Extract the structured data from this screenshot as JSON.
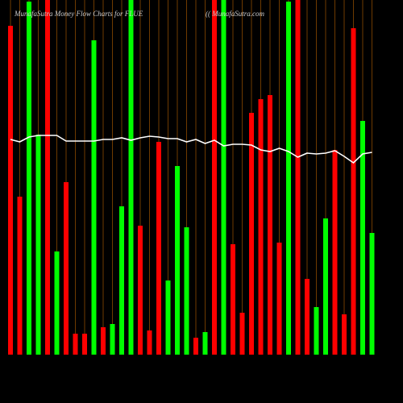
{
  "chart_data": {
    "type": "bar",
    "title": "MunafaSutra  Money Flow  Charts for FLUE",
    "subtitle": "(( MunafaSutra.com",
    "ylim": [
      0,
      440
    ],
    "values": [
      408,
      196,
      438,
      273,
      440,
      128,
      214,
      26,
      26,
      390,
      34,
      38,
      184,
      440,
      160,
      30,
      264,
      92,
      234,
      158,
      21,
      28,
      440,
      440,
      137,
      52,
      300,
      317,
      322,
      139,
      438,
      440,
      94,
      59,
      169,
      254,
      50,
      405,
      290,
      151
    ],
    "colors": [
      "#ff0000",
      "#ff0000",
      "#00ff00",
      "#00ff00",
      "#ff0000",
      "#00ff00",
      "#ff0000",
      "#ff0000",
      "#ff0000",
      "#00ff00",
      "#ff0000",
      "#00ff00",
      "#00ff00",
      "#00ff00",
      "#ff0000",
      "#ff0000",
      "#ff0000",
      "#00ff00",
      "#00ff00",
      "#00ff00",
      "#ff0000",
      "#00ff00",
      "#ff0000",
      "#00ff00",
      "#ff0000",
      "#ff0000",
      "#ff0000",
      "#ff0000",
      "#ff0000",
      "#ff0000",
      "#00ff00",
      "#ff0000",
      "#ff0000",
      "#00ff00",
      "#00ff00",
      "#ff0000",
      "#ff0000",
      "#ff0000",
      "#00ff00",
      "#00ff00"
    ],
    "line": {
      "color": "#ffffff",
      "values": [
        267,
        264,
        270,
        272,
        272,
        272,
        265,
        265,
        265,
        265,
        267,
        267,
        269,
        266,
        269,
        271,
        270,
        268,
        268,
        264,
        267,
        262,
        266,
        259,
        261,
        261,
        260,
        254,
        252,
        256,
        252,
        245,
        250,
        249,
        250,
        253,
        246,
        238,
        249,
        251
      ]
    }
  }
}
